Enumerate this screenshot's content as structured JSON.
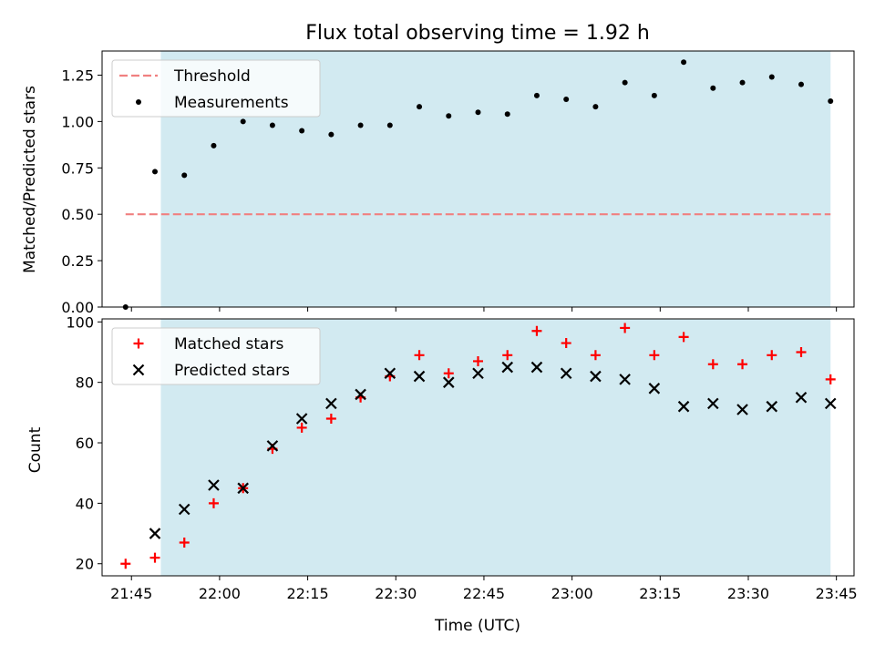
{
  "chart_data": [
    {
      "type": "scatter",
      "title": "Flux total observing time = 1.92 h",
      "ylabel": "Matched/Predicted stars",
      "ylim": [
        0,
        1.38
      ],
      "yticks": [
        "0.00",
        "0.25",
        "0.50",
        "0.75",
        "1.00",
        "1.25"
      ],
      "ytick_values": [
        0,
        0.25,
        0.5,
        0.75,
        1.0,
        1.25
      ],
      "shaded_span": {
        "start": "21:50",
        "end": "23:44",
        "color": "#add8e6"
      },
      "threshold": {
        "name": "Threshold",
        "value": 0.5,
        "x_start": "21:44",
        "x_end": "23:44",
        "color": "#f08080"
      },
      "series": [
        {
          "name": "Measurements",
          "marker": "dot",
          "color": "#000000",
          "x": [
            "21:44",
            "21:49",
            "21:54",
            "21:59",
            "22:04",
            "22:09",
            "22:14",
            "22:19",
            "22:24",
            "22:29",
            "22:34",
            "22:39",
            "22:44",
            "22:49",
            "22:54",
            "22:59",
            "23:04",
            "23:09",
            "23:14",
            "23:19",
            "23:24",
            "23:29",
            "23:34",
            "23:39",
            "23:44"
          ],
          "y": [
            0.0,
            0.73,
            0.71,
            0.87,
            1.0,
            0.98,
            0.95,
            0.93,
            0.98,
            0.98,
            1.08,
            1.03,
            1.05,
            1.04,
            1.14,
            1.12,
            1.08,
            1.21,
            1.14,
            1.32,
            1.18,
            1.21,
            1.24,
            1.2,
            1.11
          ]
        }
      ],
      "legend": {
        "location": "upper left",
        "items": [
          "Threshold",
          "Measurements"
        ]
      }
    },
    {
      "type": "scatter",
      "xlabel": "Time (UTC)",
      "ylabel": "Count",
      "ylim": [
        16,
        101
      ],
      "yticks": [
        "20",
        "40",
        "60",
        "80",
        "100"
      ],
      "ytick_values": [
        20,
        40,
        60,
        80,
        100
      ],
      "xlim": [
        "21:40",
        "23:48"
      ],
      "xticks": [
        "21:45",
        "22:00",
        "22:15",
        "22:30",
        "22:45",
        "23:00",
        "23:15",
        "23:30",
        "23:45"
      ],
      "shaded_span": {
        "start": "21:50",
        "end": "23:44",
        "color": "#add8e6"
      },
      "series": [
        {
          "name": "Matched stars",
          "marker": "plus",
          "color": "#ff0000",
          "x": [
            "21:44",
            "21:49",
            "21:54",
            "21:59",
            "22:04",
            "22:09",
            "22:14",
            "22:19",
            "22:24",
            "22:29",
            "22:34",
            "22:39",
            "22:44",
            "22:49",
            "22:54",
            "22:59",
            "23:04",
            "23:09",
            "23:14",
            "23:19",
            "23:24",
            "23:29",
            "23:34",
            "23:39",
            "23:44"
          ],
          "y": [
            20,
            22,
            27,
            40,
            45,
            58,
            65,
            68,
            75,
            82,
            89,
            83,
            87,
            89,
            97,
            93,
            89,
            98,
            89,
            95,
            86,
            86,
            89,
            90,
            81
          ]
        },
        {
          "name": "Predicted stars",
          "marker": "x",
          "color": "#000000",
          "x": [
            "21:49",
            "21:54",
            "21:59",
            "22:04",
            "22:09",
            "22:14",
            "22:19",
            "22:24",
            "22:29",
            "22:34",
            "22:39",
            "22:44",
            "22:49",
            "22:54",
            "22:59",
            "23:04",
            "23:09",
            "23:14",
            "23:19",
            "23:24",
            "23:29",
            "23:34",
            "23:39",
            "23:44"
          ],
          "y": [
            30,
            38,
            46,
            45,
            59,
            68,
            73,
            76,
            83,
            82,
            80,
            83,
            85,
            85,
            83,
            82,
            81,
            78,
            72,
            73,
            71,
            72,
            75,
            73
          ]
        }
      ],
      "legend": {
        "location": "upper left",
        "items": [
          "Matched stars",
          "Predicted stars"
        ]
      }
    }
  ]
}
